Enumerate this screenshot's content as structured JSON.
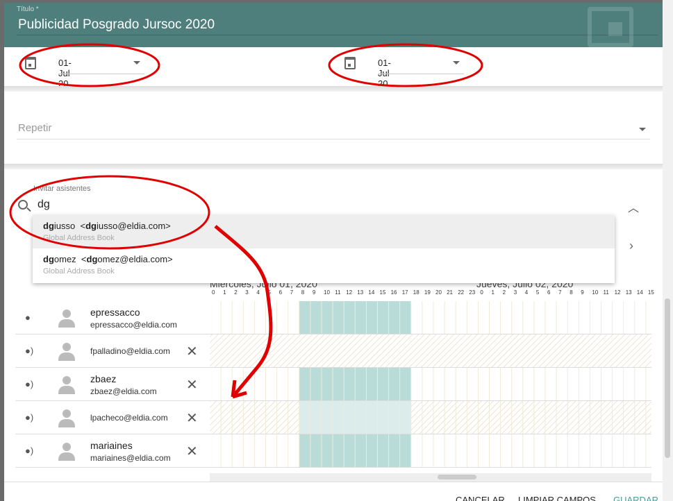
{
  "header": {
    "title_label": "Título *",
    "title_value": "Publicidad Posgrado Jursoc 2020"
  },
  "start_date": {
    "value": "01-Jul-20",
    "icon": "calendar-icon"
  },
  "end_date": {
    "value": "01-Jul-20",
    "icon": "calendar-icon"
  },
  "repeat": {
    "placeholder": "Repetir"
  },
  "invite": {
    "label": "Invitar asistentes",
    "query": "dg",
    "suggestions": [
      {
        "match": "dg",
        "rest": "iusso",
        "email_pre": "<",
        "email_match": "dg",
        "email_rest": "iusso@eldia.com>",
        "source": "Global Address Book"
      },
      {
        "match": "dg",
        "rest": "omez",
        "email_pre": "<",
        "email_match": "dg",
        "email_rest": "omez@eldia.com>",
        "source": "Global Address Book"
      }
    ]
  },
  "schedule": {
    "day1": "Miercoles, Julio 01, 2020",
    "day2": "Jueves, Julio 02, 2020",
    "hours": [
      "0",
      "1",
      "2",
      "3",
      "4",
      "5",
      "6",
      "7",
      "8",
      "9",
      "10",
      "11",
      "12",
      "13",
      "14",
      "15",
      "16",
      "17",
      "18",
      "19",
      "20",
      "21",
      "22",
      "23",
      "0",
      "1",
      "2",
      "3",
      "4",
      "5",
      "6",
      "7",
      "8",
      "9",
      "10",
      "11",
      "12",
      "13",
      "14",
      "15"
    ],
    "busy_hours_day1": [
      8,
      18
    ],
    "attendees": [
      {
        "name": "epressacco",
        "email": "epressacco@eldia.com",
        "role": "organizer",
        "removable": false,
        "availability": "known"
      },
      {
        "name": "",
        "email": "fpalladino@eldia.com",
        "role": "attendee",
        "removable": true,
        "availability": "unknown"
      },
      {
        "name": "zbaez",
        "email": "zbaez@eldia.com",
        "role": "attendee",
        "removable": true,
        "availability": "known"
      },
      {
        "name": "",
        "email": "lpacheco@eldia.com",
        "role": "attendee",
        "removable": true,
        "availability": "unknown-meeting"
      },
      {
        "name": "mariaines",
        "email": "mariaines@eldia.com",
        "role": "attendee",
        "removable": true,
        "availability": "known"
      }
    ]
  },
  "footer": {
    "cancel": "CANCELAR",
    "clear": "LIMPIAR CAMPOS",
    "save": "GUARDAR"
  },
  "colors": {
    "header": "#4e7f7c",
    "busy": "#b9dcd8",
    "accent": "#4e9a94",
    "annotation": "#e00000"
  }
}
